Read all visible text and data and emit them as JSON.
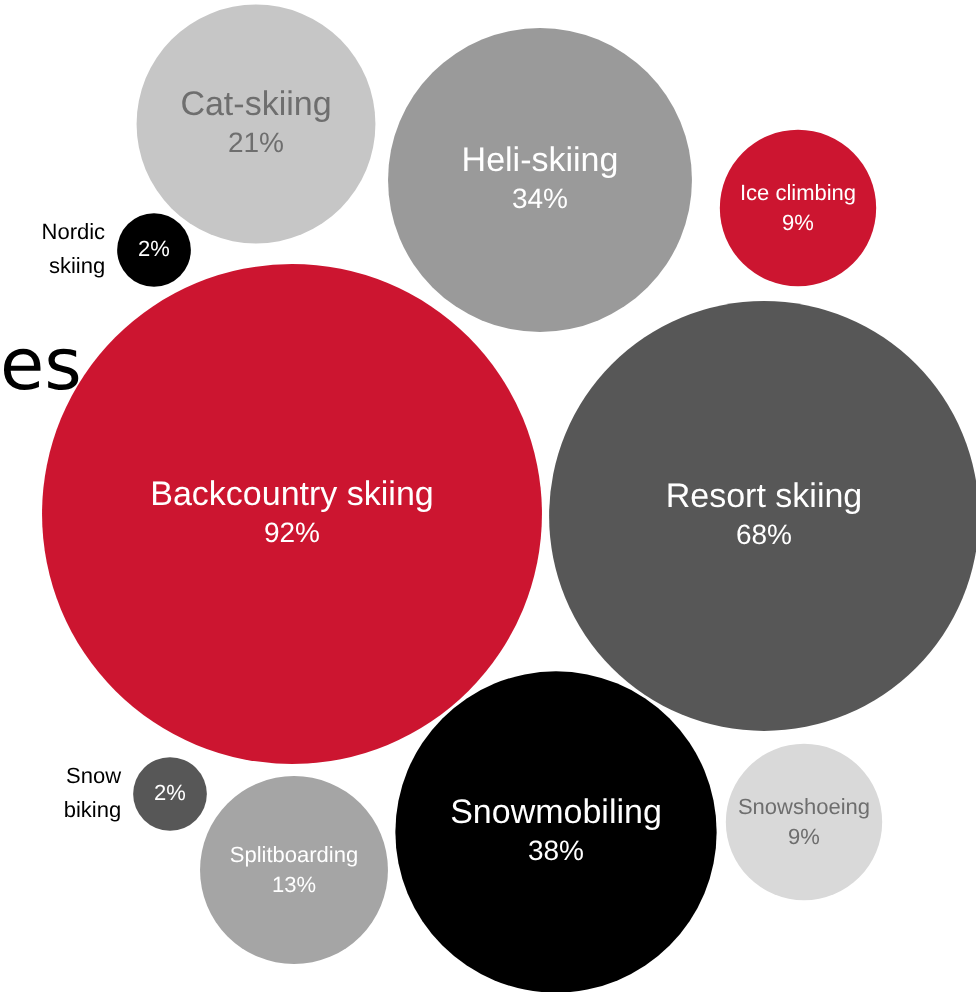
{
  "chart_data": {
    "type": "other",
    "categories": [
      "Cat-skiing",
      "Heli-skiing",
      "Ice climbing",
      "Nordic skiing",
      "Backcountry skiing",
      "Resort skiing",
      "Snow biking",
      "Splitboarding",
      "Snowmobiling",
      "Snowshoeing"
    ],
    "values": [
      21,
      34,
      9,
      2,
      92,
      68,
      2,
      13,
      38,
      9
    ],
    "value_labels": [
      "21%",
      "34%",
      "9%",
      "2%",
      "92%",
      "68%",
      "2%",
      "13%",
      "38%",
      "9%"
    ],
    "colors": [
      "#c6c6c6",
      "#9a9a9a",
      "#cc1530",
      "#000000",
      "#cc1530",
      "#575757",
      "#575757",
      "#a5a5a5",
      "#000000",
      "#d9d9d9"
    ],
    "annotations": [
      "es"
    ]
  }
}
